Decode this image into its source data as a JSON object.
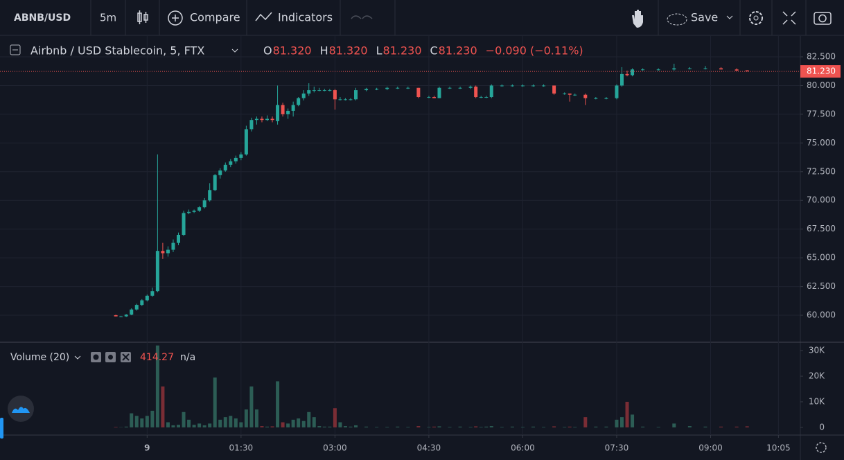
{
  "toolbar": {
    "symbol": "ABNB/USD",
    "interval": "5m",
    "compare": "Compare",
    "indicators": "Indicators",
    "save": "Save"
  },
  "chart_data": [
    {
      "type": "candlestick",
      "title": "Airbnb / USD Stablecoin, 5, FTX",
      "legend": [
        [
          "O",
          "81.320"
        ],
        [
          "H",
          "81.320"
        ],
        [
          "L",
          "81.230"
        ],
        [
          "C",
          "81.230"
        ]
      ],
      "change": "−0.090 (−0.11%)",
      "last_price": {
        "value": 81.23,
        "label": "81.230"
      },
      "up_color": "#26a69a",
      "down_color": "#ef5350",
      "x": [
        -30,
        -25,
        -20,
        -15,
        -10,
        -5,
        0,
        5,
        10,
        15,
        20,
        25,
        30,
        35,
        40,
        45,
        50,
        55,
        60,
        65,
        70,
        75,
        80,
        85,
        90,
        95,
        100,
        105,
        110,
        115,
        120,
        125,
        130,
        135,
        140,
        145,
        150,
        155,
        160,
        165,
        170,
        175,
        180,
        185,
        190,
        195,
        200,
        210,
        220,
        230,
        240,
        250,
        260,
        270,
        275,
        280,
        290,
        300,
        310,
        315,
        320,
        325,
        330,
        340,
        350,
        360,
        370,
        380,
        390,
        400,
        405,
        410,
        420,
        430,
        440,
        450,
        455,
        460,
        465,
        475,
        490,
        505,
        520,
        535,
        550,
        565,
        575
      ],
      "open": [
        60.0,
        59.9,
        59.9,
        60.05,
        60.5,
        60.9,
        61.3,
        61.7,
        62.1,
        65.6,
        65.4,
        65.7,
        66.3,
        67.0,
        68.9,
        69.0,
        69.1,
        69.4,
        70.0,
        70.9,
        72.2,
        72.6,
        73.1,
        73.4,
        73.7,
        74.0,
        76.2,
        77.0,
        77.1,
        77.0,
        77.1,
        76.9,
        78.3,
        77.5,
        77.8,
        78.3,
        78.9,
        79.3,
        79.6,
        79.6,
        79.6,
        79.6,
        79.6,
        78.8,
        78.8,
        78.8,
        78.8,
        79.6,
        79.7,
        79.7,
        79.8,
        79.8,
        79.8,
        79.0,
        79.0,
        78.9,
        79.8,
        79.8,
        79.8,
        79.9,
        79.0,
        79.0,
        79.0,
        80.0,
        80.0,
        80.0,
        80.0,
        80.0,
        80.0,
        79.3,
        79.3,
        79.2,
        79.2,
        78.9,
        78.9,
        78.9,
        80.0,
        81.0,
        80.9,
        81.4,
        81.4,
        81.4,
        81.5,
        81.5,
        81.5,
        81.4,
        81.32
      ],
      "high": [
        60.05,
        59.95,
        60.1,
        60.6,
        61.0,
        61.4,
        61.8,
        62.4,
        74.0,
        66.3,
        66.0,
        66.6,
        67.2,
        69.1,
        69.2,
        69.2,
        69.5,
        70.2,
        71.5,
        72.3,
        72.8,
        73.3,
        73.6,
        73.9,
        74.2,
        76.5,
        77.2,
        77.3,
        77.3,
        77.4,
        77.3,
        80.0,
        78.5,
        78.0,
        78.6,
        79.0,
        79.6,
        80.2,
        79.9,
        79.8,
        79.7,
        79.7,
        79.7,
        79.0,
        78.9,
        78.9,
        79.8,
        79.8,
        79.8,
        79.9,
        79.9,
        79.9,
        79.8,
        79.1,
        79.1,
        79.9,
        79.9,
        79.9,
        80.0,
        80.0,
        79.1,
        79.1,
        80.1,
        80.1,
        80.1,
        80.1,
        80.1,
        80.1,
        80.0,
        79.4,
        79.3,
        79.3,
        79.3,
        79.0,
        79.0,
        80.1,
        81.6,
        81.3,
        81.5,
        81.5,
        81.5,
        81.9,
        81.6,
        81.7,
        81.6,
        81.5,
        81.32
      ],
      "low": [
        59.9,
        59.85,
        59.85,
        60.0,
        60.4,
        60.8,
        61.2,
        61.6,
        62.0,
        64.9,
        65.1,
        65.5,
        66.1,
        66.9,
        68.8,
        68.9,
        69.0,
        69.3,
        69.9,
        70.8,
        71.9,
        72.5,
        72.9,
        73.2,
        73.5,
        73.9,
        76.0,
        76.6,
        76.8,
        76.9,
        76.8,
        76.6,
        77.3,
        77.1,
        77.3,
        78.2,
        78.7,
        79.1,
        79.4,
        79.5,
        79.5,
        79.5,
        77.9,
        78.7,
        78.7,
        78.7,
        78.7,
        79.5,
        79.6,
        79.6,
        79.7,
        79.7,
        78.9,
        78.9,
        78.9,
        78.9,
        79.7,
        79.7,
        79.7,
        78.9,
        78.9,
        78.9,
        78.9,
        79.9,
        79.9,
        79.9,
        79.9,
        79.9,
        79.2,
        79.2,
        78.6,
        79.1,
        78.3,
        78.8,
        78.8,
        78.8,
        79.9,
        80.8,
        80.8,
        81.3,
        81.3,
        81.3,
        81.4,
        81.4,
        81.4,
        81.3,
        81.23
      ],
      "close": [
        59.9,
        59.9,
        60.05,
        60.5,
        60.9,
        61.3,
        61.7,
        62.1,
        65.6,
        65.4,
        65.7,
        66.3,
        67.0,
        68.9,
        69.0,
        69.1,
        69.4,
        70.0,
        70.9,
        72.2,
        72.6,
        73.1,
        73.4,
        73.7,
        74.0,
        76.2,
        77.0,
        77.1,
        77.0,
        77.1,
        77.0,
        78.3,
        77.5,
        77.8,
        78.3,
        78.9,
        79.3,
        79.6,
        79.6,
        79.6,
        79.6,
        79.6,
        78.8,
        78.8,
        78.8,
        78.8,
        79.6,
        79.7,
        79.7,
        79.8,
        79.8,
        79.8,
        79.0,
        79.0,
        78.9,
        79.8,
        79.8,
        79.8,
        79.9,
        79.0,
        79.0,
        79.0,
        80.0,
        80.0,
        80.0,
        80.0,
        80.0,
        80.0,
        79.3,
        79.3,
        79.2,
        79.2,
        78.9,
        78.9,
        78.9,
        80.0,
        81.0,
        80.9,
        81.4,
        81.4,
        81.4,
        81.5,
        81.5,
        81.5,
        81.4,
        81.3,
        81.23
      ],
      "xlim": [
        -141,
        626
      ],
      "xticks": [
        {
          "value": 0,
          "label": "9"
        },
        {
          "value": 90,
          "label": "01:30"
        },
        {
          "value": 180,
          "label": "03:00"
        },
        {
          "value": 270,
          "label": "04:30"
        },
        {
          "value": 360,
          "label": "06:00"
        },
        {
          "value": 450,
          "label": "07:30"
        },
        {
          "value": 540,
          "label": "09:00"
        },
        {
          "value": 605,
          "label": "10:05"
        }
      ],
      "ylim": [
        57.71,
        84.31
      ],
      "yticks": [
        {
          "value": 60,
          "label": "60.000"
        },
        {
          "value": 62.5,
          "label": "62.500"
        },
        {
          "value": 65,
          "label": "65.000"
        },
        {
          "value": 67.5,
          "label": "67.500"
        },
        {
          "value": 70,
          "label": "70.000"
        },
        {
          "value": 72.5,
          "label": "72.500"
        },
        {
          "value": 75,
          "label": "75.000"
        },
        {
          "value": 77.5,
          "label": "77.500"
        },
        {
          "value": 80,
          "label": "80.000"
        },
        {
          "value": 82.5,
          "label": "82.500"
        }
      ],
      "grid": true
    },
    {
      "type": "volume",
      "title": "Volume (20)",
      "last_value": "414.27",
      "ma_value": "n/a",
      "up_color": "#2c5d55",
      "down_color": "#7a2d35",
      "values": [
        200,
        100,
        300,
        5500,
        4500,
        3500,
        4500,
        6500,
        32000,
        16000,
        2000,
        800,
        1000,
        6000,
        3000,
        1000,
        1500,
        800,
        1500,
        19500,
        3000,
        4000,
        4500,
        3500,
        2000,
        7000,
        16000,
        7000,
        500,
        300,
        400,
        18000,
        2000,
        1500,
        3000,
        3500,
        2500,
        6000,
        4000,
        500,
        300,
        300,
        7500,
        2000,
        500,
        300,
        800,
        300,
        200,
        200,
        300,
        200,
        500,
        200,
        300,
        400,
        200,
        300,
        200,
        400,
        200,
        300,
        500,
        200,
        300,
        200,
        300,
        200,
        400,
        200,
        300,
        200,
        4000,
        300,
        300,
        3000,
        4000,
        10000,
        5000,
        300,
        200,
        1500,
        500,
        300,
        300,
        300,
        414.27
      ],
      "ylim": [
        -3000,
        33000
      ],
      "yticks": [
        0,
        {
          "value": 10000,
          "label": "10K"
        },
        {
          "value": 20000,
          "label": "20K"
        },
        {
          "value": 30000,
          "label": "30K"
        }
      ]
    }
  ]
}
